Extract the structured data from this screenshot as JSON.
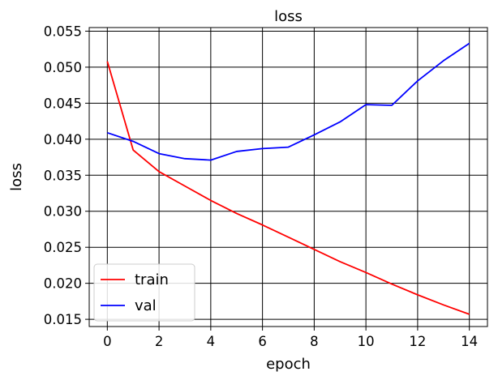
{
  "chart_data": {
    "type": "line",
    "title": "loss",
    "xlabel": "epoch",
    "ylabel": "loss",
    "xlim": [
      -0.7,
      14.7
    ],
    "ylim": [
      0.014,
      0.0555
    ],
    "xticks": [
      0,
      2,
      4,
      6,
      8,
      10,
      12,
      14
    ],
    "xtick_labels": [
      "0",
      "2",
      "4",
      "6",
      "8",
      "10",
      "12",
      "14"
    ],
    "yticks": [
      0.015,
      0.02,
      0.025,
      0.03,
      0.035,
      0.04,
      0.045,
      0.05,
      0.055
    ],
    "ytick_labels": [
      "0.015",
      "0.020",
      "0.025",
      "0.030",
      "0.035",
      "0.040",
      "0.045",
      "0.050",
      "0.055"
    ],
    "grid": true,
    "legend_position": "bottom-left",
    "x": [
      0,
      1,
      2,
      3,
      4,
      5,
      6,
      7,
      8,
      9,
      10,
      11,
      12,
      13,
      14
    ],
    "series": [
      {
        "name": "train",
        "color": "#ff0000",
        "values": [
          0.0508,
          0.0385,
          0.0355,
          0.0335,
          0.0315,
          0.0297,
          0.0281,
          0.0264,
          0.0247,
          0.023,
          0.0215,
          0.0199,
          0.0184,
          0.017,
          0.0157
        ]
      },
      {
        "name": "val",
        "color": "#0000ff",
        "values": [
          0.0409,
          0.0397,
          0.038,
          0.0373,
          0.0371,
          0.0383,
          0.0387,
          0.0389,
          0.0406,
          0.0424,
          0.0448,
          0.0447,
          0.0481,
          0.0509,
          0.0533
        ]
      }
    ]
  }
}
